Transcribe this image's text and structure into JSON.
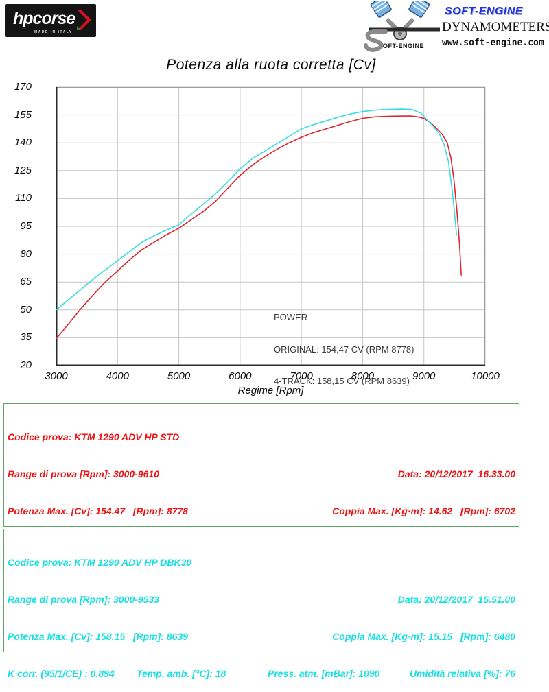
{
  "header": {
    "hpcorse": {
      "brand": "hpcorse",
      "made_in": "MADE IN ITALY"
    },
    "softengine": {
      "brand": "SOFT-ENGINE",
      "s_text": "OFT-ENGINE",
      "line1": "DYNAMOMETERS",
      "line2": "www.soft-engine.com"
    }
  },
  "chart_data": {
    "type": "line",
    "title": "Potenza alla ruota corretta [Cv]",
    "xlabel": "Regime [Rpm]",
    "ylabel": "",
    "xlim": [
      3000,
      10000
    ],
    "ylim": [
      20,
      170
    ],
    "xticks": [
      3000,
      4000,
      5000,
      6000,
      7000,
      8000,
      9000,
      10000
    ],
    "yticks": [
      20,
      35,
      50,
      65,
      80,
      95,
      110,
      125,
      140,
      155,
      170
    ],
    "grid": true,
    "grid_color": "#c6c6c6",
    "annotation": {
      "lines": [
        "POWER",
        "ORIGINAL: 154,47 CV (RPM 8778)",
        "4-TRACK: 158,15 CV (RPM 8639)"
      ]
    },
    "series": [
      {
        "name": "ORIGINAL",
        "color": "#e02430",
        "peak": {
          "cv": 154.47,
          "rpm": 8778
        },
        "points": [
          [
            3000,
            34.5
          ],
          [
            3200,
            42.5
          ],
          [
            3400,
            50.5
          ],
          [
            3600,
            58
          ],
          [
            3800,
            65
          ],
          [
            4000,
            71
          ],
          [
            4200,
            77
          ],
          [
            4400,
            82.5
          ],
          [
            4600,
            86.5
          ],
          [
            4800,
            90.5
          ],
          [
            5000,
            94
          ],
          [
            5200,
            98.5
          ],
          [
            5400,
            103
          ],
          [
            5600,
            108.5
          ],
          [
            5800,
            115.5
          ],
          [
            6000,
            122.5
          ],
          [
            6200,
            128
          ],
          [
            6400,
            132.5
          ],
          [
            6600,
            136.5
          ],
          [
            6800,
            140
          ],
          [
            7000,
            143
          ],
          [
            7200,
            145.5
          ],
          [
            7400,
            147.5
          ],
          [
            7600,
            149.5
          ],
          [
            7800,
            151.5
          ],
          [
            8000,
            153.2
          ],
          [
            8200,
            154
          ],
          [
            8400,
            154.3
          ],
          [
            8600,
            154.4
          ],
          [
            8778,
            154.5
          ],
          [
            8900,
            154
          ],
          [
            9000,
            153.2
          ],
          [
            9100,
            151
          ],
          [
            9200,
            148
          ],
          [
            9300,
            144.5
          ],
          [
            9380,
            140.2
          ],
          [
            9440,
            132
          ],
          [
            9490,
            120
          ],
          [
            9540,
            103
          ],
          [
            9580,
            86
          ],
          [
            9610,
            68.5
          ]
        ]
      },
      {
        "name": "4-TRACK",
        "color": "#3adde4",
        "peak": {
          "cv": 158.15,
          "rpm": 8639
        },
        "points": [
          [
            3000,
            50
          ],
          [
            3200,
            55.5
          ],
          [
            3400,
            61
          ],
          [
            3600,
            66.5
          ],
          [
            3800,
            71.5
          ],
          [
            4000,
            76.5
          ],
          [
            4200,
            81.5
          ],
          [
            4400,
            86.5
          ],
          [
            4600,
            90
          ],
          [
            4800,
            93
          ],
          [
            5000,
            95.8
          ],
          [
            5200,
            101.5
          ],
          [
            5400,
            107
          ],
          [
            5600,
            112.5
          ],
          [
            5800,
            119
          ],
          [
            6000,
            126
          ],
          [
            6200,
            131.5
          ],
          [
            6400,
            135.5
          ],
          [
            6600,
            139.5
          ],
          [
            6800,
            143.5
          ],
          [
            7000,
            147.5
          ],
          [
            7200,
            149.8
          ],
          [
            7400,
            151.8
          ],
          [
            7600,
            153.8
          ],
          [
            7800,
            155.5
          ],
          [
            8000,
            156.8
          ],
          [
            8200,
            157.6
          ],
          [
            8400,
            158
          ],
          [
            8639,
            158.15
          ],
          [
            8800,
            158
          ],
          [
            8950,
            156
          ],
          [
            9050,
            152.5
          ],
          [
            9150,
            149
          ],
          [
            9250,
            145
          ],
          [
            9330,
            139
          ],
          [
            9400,
            130
          ],
          [
            9460,
            115
          ],
          [
            9500,
            102
          ],
          [
            9533,
            90
          ]
        ]
      }
    ]
  },
  "results": [
    {
      "color": "#ee1414",
      "codice": "Codice prova: KTM 1290 ADV HP STD",
      "range": "Range di prova [Rpm]: 3000-9610",
      "data": "Data: 20/12/2017  16.33.00",
      "potenza": "Potenza Max. [Cv]: 154.47   [Rpm]: 8778",
      "coppia": "Coppia Max. [Kg·m]: 14.62   [Rpm]: 6702",
      "kcorr": "K corr. (95/1/CE) : 0.894",
      "temp": "Temp. amb. [°C]: 18",
      "press": "Press. atm. [mBar]: 1090",
      "umidita": "Umidità relativa [%]: 76"
    },
    {
      "color": "#17dfe2",
      "codice": "Codice prova: KTM 1290 ADV HP DBK30",
      "range": "Range di prova [Rpm]: 3000-9533",
      "data": "Data: 20/12/2017  15.51.00",
      "potenza": "Potenza Max. [Cv]: 158.15   [Rpm]: 8639",
      "coppia": "Coppia Max. [Kg·m]: 15.15   [Rpm]: 6480",
      "kcorr": "K corr. (95/1/CE) : 0.894",
      "temp": "Temp. amb. [°C]: 18",
      "press": "Press. atm. [mBar]: 1090",
      "umidita": "Umidità relativa [%]: 76"
    }
  ]
}
